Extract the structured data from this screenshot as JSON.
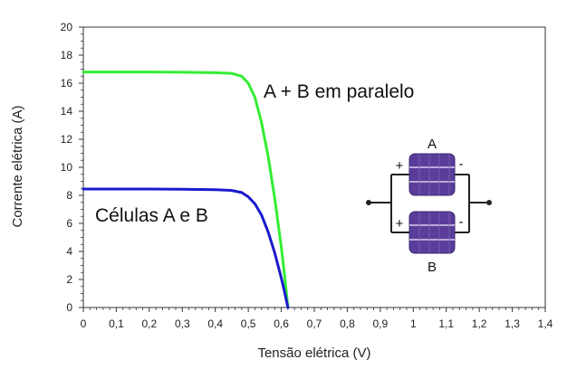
{
  "chart_data": {
    "type": "line",
    "xlabel": "Tensão elétrica (V)",
    "ylabel": "Corrente elétrica (A)",
    "xlim": [
      0,
      1.4
    ],
    "ylim": [
      0,
      20
    ],
    "x_ticks": [
      "0",
      "0,1",
      "0,2",
      "0,3",
      "0,4",
      "0,5",
      "0,6",
      "0,7",
      "0,8",
      "0,9",
      "1",
      "1,1",
      "1,2",
      "1,3",
      "1,4"
    ],
    "y_ticks": [
      "0",
      "2",
      "4",
      "6",
      "8",
      "10",
      "12",
      "14",
      "16",
      "18",
      "20"
    ],
    "grid": false,
    "series": [
      {
        "name": "A + B em paralelo",
        "color": "#33ee33",
        "points": [
          [
            0,
            16.8
          ],
          [
            0.1,
            16.8
          ],
          [
            0.2,
            16.8
          ],
          [
            0.3,
            16.78
          ],
          [
            0.4,
            16.75
          ],
          [
            0.45,
            16.7
          ],
          [
            0.48,
            16.5
          ],
          [
            0.5,
            16.0
          ],
          [
            0.52,
            15.0
          ],
          [
            0.54,
            13.2
          ],
          [
            0.56,
            10.8
          ],
          [
            0.58,
            7.8
          ],
          [
            0.6,
            4.3
          ],
          [
            0.61,
            2.3
          ],
          [
            0.62,
            0
          ]
        ]
      },
      {
        "name": "Células A e B",
        "color": "#1a1acc",
        "points": [
          [
            0,
            8.45
          ],
          [
            0.1,
            8.45
          ],
          [
            0.2,
            8.45
          ],
          [
            0.3,
            8.43
          ],
          [
            0.4,
            8.4
          ],
          [
            0.45,
            8.35
          ],
          [
            0.48,
            8.2
          ],
          [
            0.5,
            7.9
          ],
          [
            0.52,
            7.4
          ],
          [
            0.54,
            6.6
          ],
          [
            0.56,
            5.4
          ],
          [
            0.58,
            3.9
          ],
          [
            0.6,
            2.1
          ],
          [
            0.61,
            1.1
          ],
          [
            0.62,
            0
          ]
        ]
      }
    ],
    "annotations": [
      {
        "text": "A + B em paralelo",
        "series": 0
      },
      {
        "text": "Células A e B",
        "series": 1
      }
    ]
  },
  "diagram": {
    "top_label": "A",
    "bottom_label": "B",
    "plus": "+",
    "minus": "-",
    "cell_color": "#5a3d9a",
    "wire_color": "#222222"
  }
}
